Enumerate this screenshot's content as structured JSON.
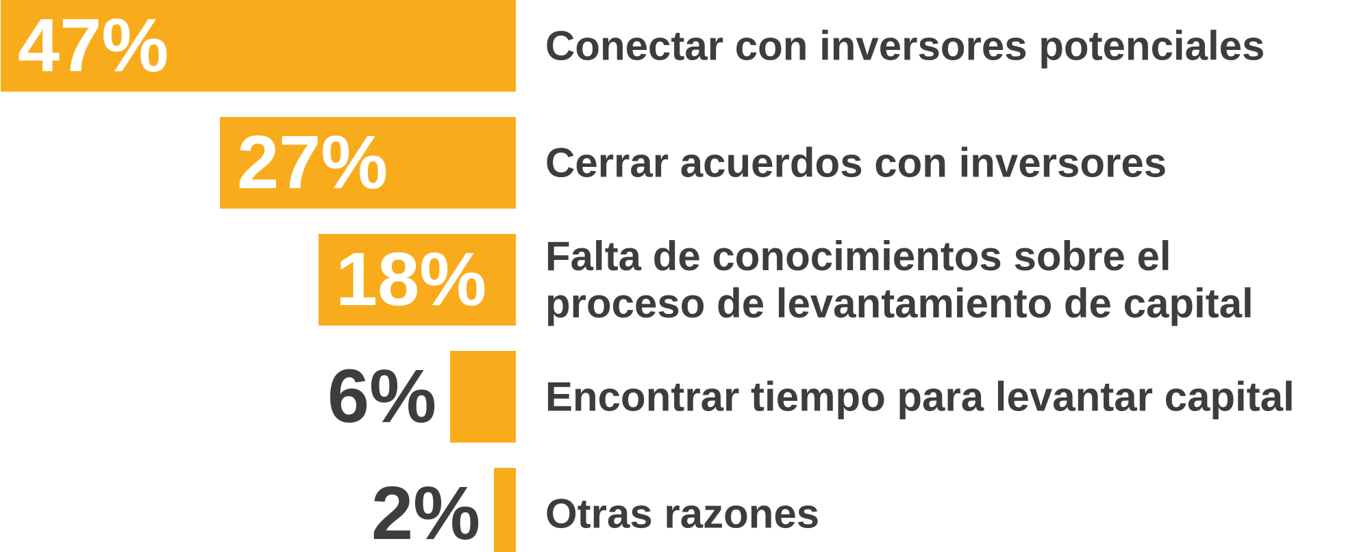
{
  "chart_data": {
    "type": "bar",
    "orientation": "horizontal",
    "categories": [
      "Conectar con inversores potenciales",
      "Cerrar acuerdos con inversores",
      "Falta de conocimientos sobre el proceso de levantamiento de capital",
      "Encontrar tiempo para levantar capital",
      "Otras razones"
    ],
    "values": [
      47,
      27,
      18,
      6,
      2
    ],
    "value_labels": [
      "47%",
      "27%",
      "18%",
      "6%",
      "2%"
    ],
    "color": "#f9ac1b"
  }
}
